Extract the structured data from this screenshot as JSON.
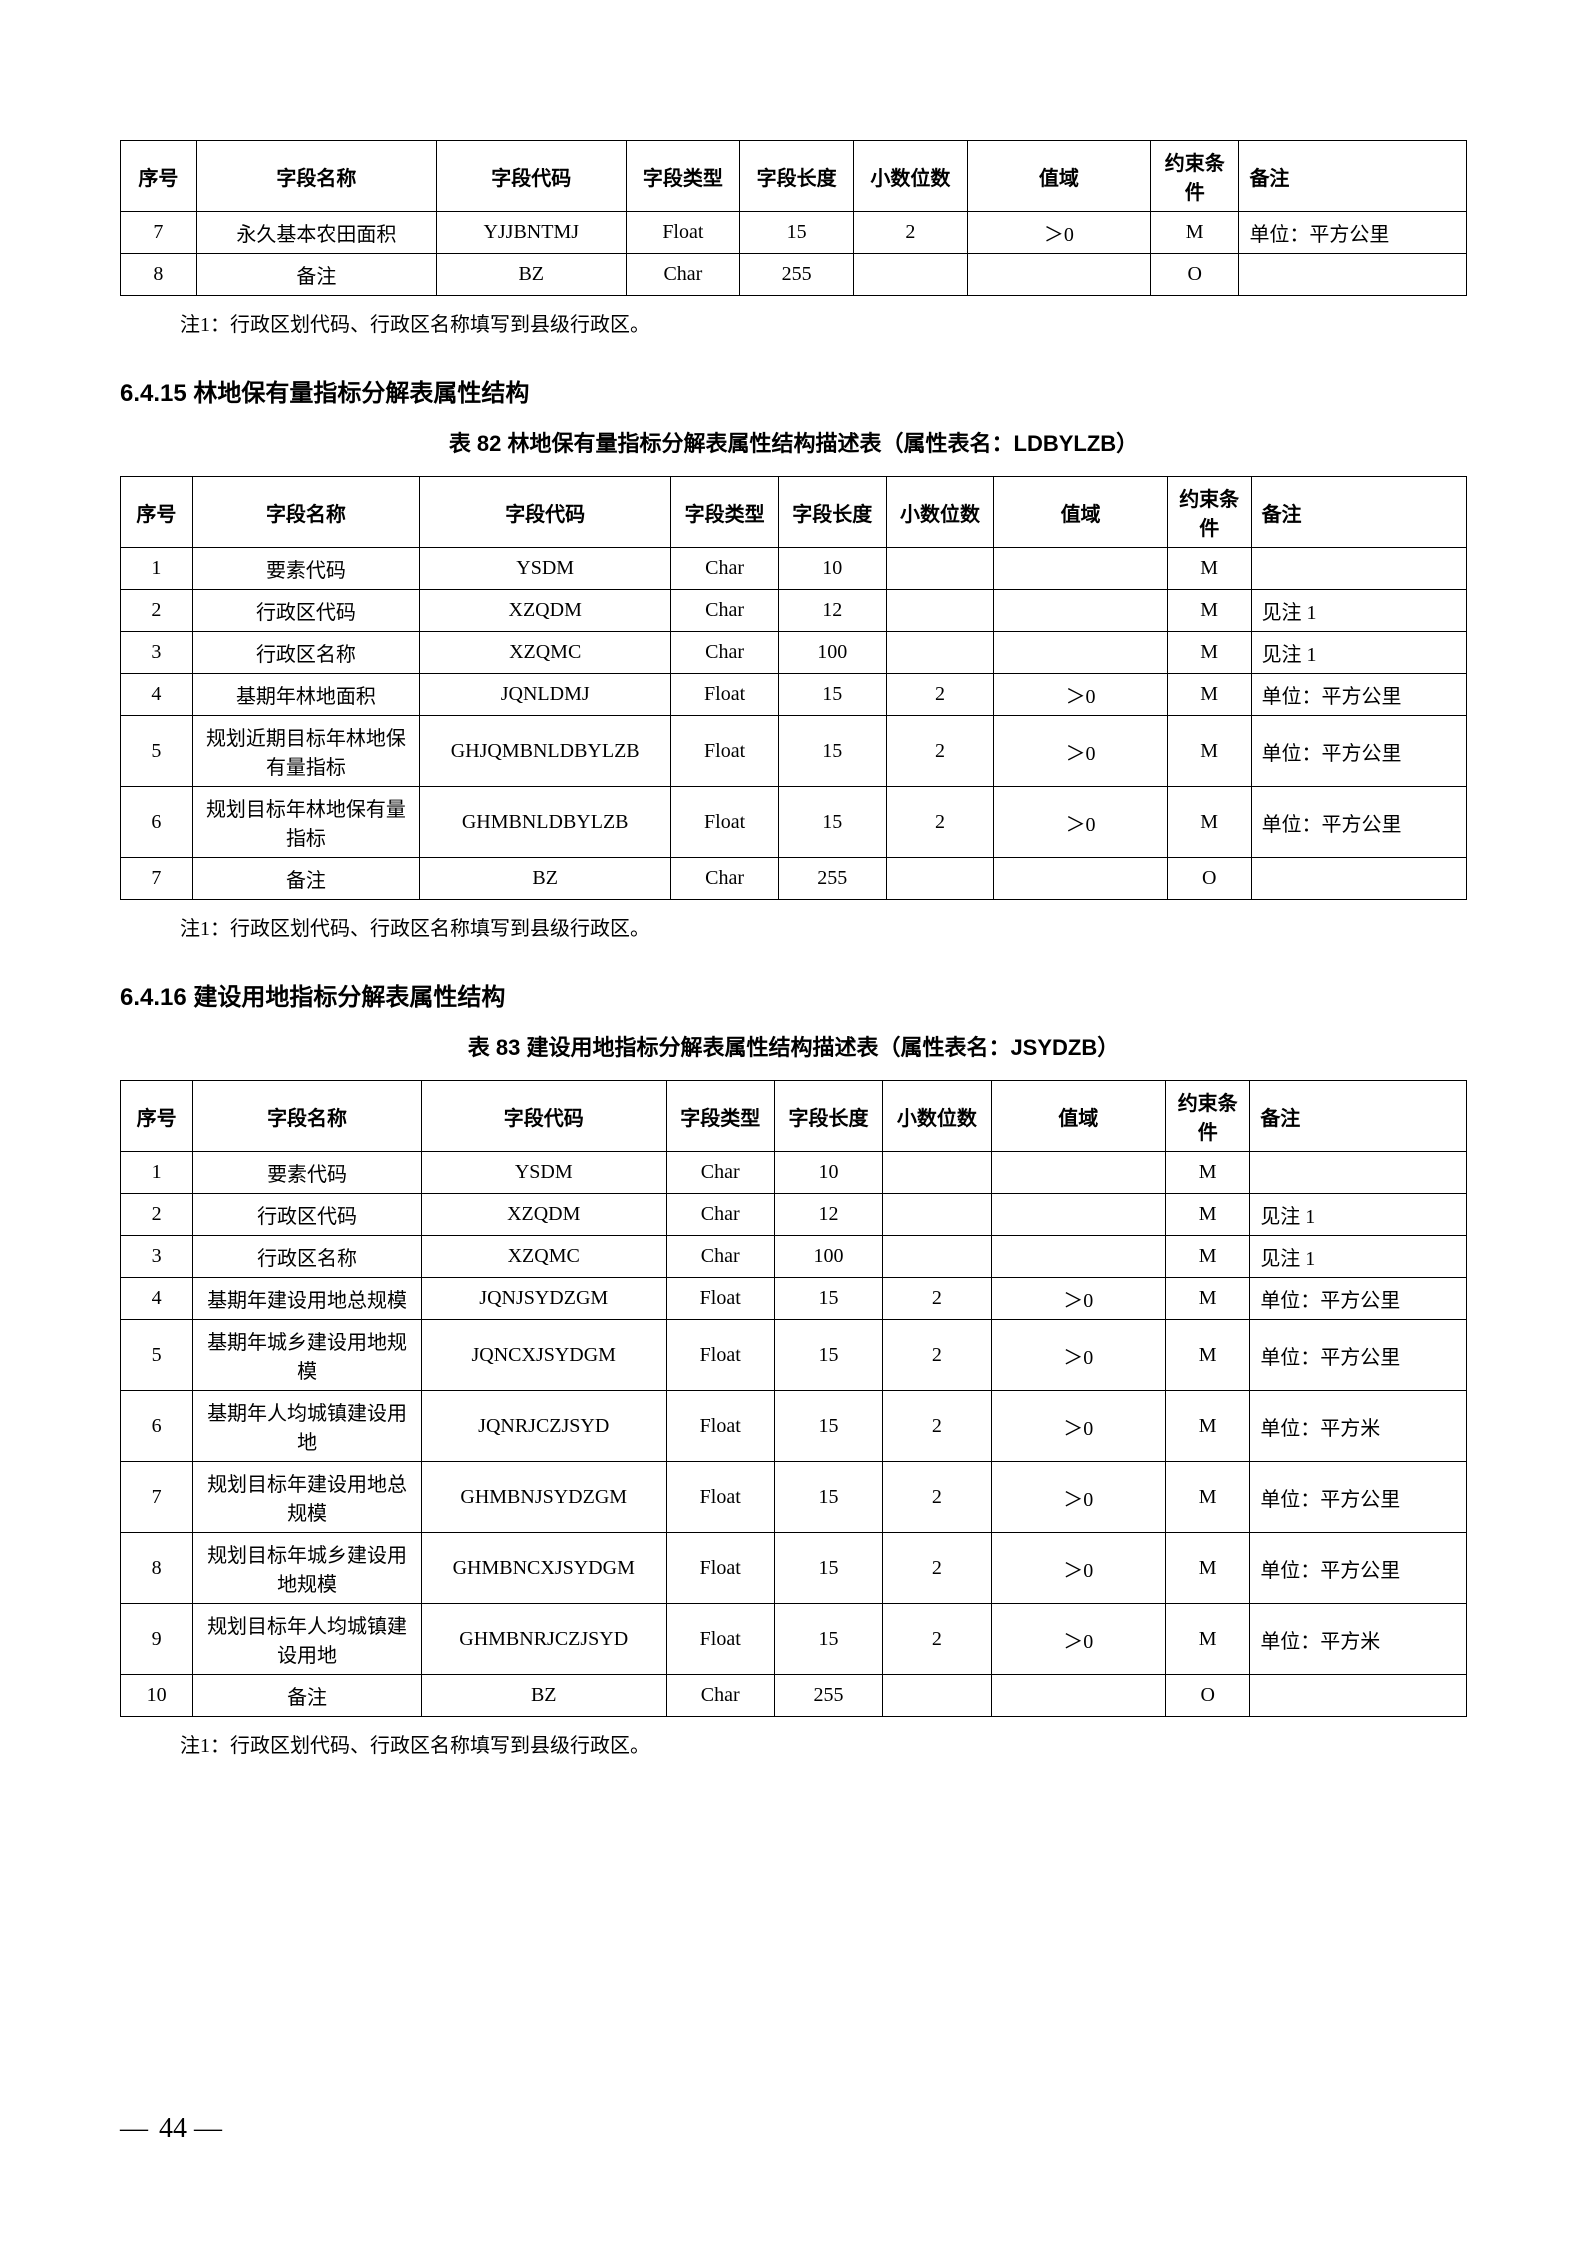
{
  "table1": {
    "headers": [
      "序号",
      "字段名称",
      "字段代码",
      "字段类型",
      "字段长度",
      "小数位数",
      "值域",
      "约束条件",
      "备注"
    ],
    "rows": [
      [
        "7",
        "永久基本农田面积",
        "YJJBNTMJ",
        "Float",
        "15",
        "2",
        "＞0",
        "M",
        "单位：平方公里"
      ],
      [
        "8",
        "备注",
        "BZ",
        "Char",
        "255",
        "",
        "",
        "O",
        ""
      ]
    ],
    "note": "注1：行政区划代码、行政区名称填写到县级行政区。"
  },
  "section2": {
    "heading": "6.4.15  林地保有量指标分解表属性结构",
    "caption": "表 82  林地保有量指标分解表属性结构描述表（属性表名：LDBYLZB）",
    "headers": [
      "序号",
      "字段名称",
      "字段代码",
      "字段类型",
      "字段长度",
      "小数位数",
      "值域",
      "约束条件",
      "备注"
    ],
    "rows": [
      [
        "1",
        "要素代码",
        "YSDM",
        "Char",
        "10",
        "",
        "",
        "M",
        ""
      ],
      [
        "2",
        "行政区代码",
        "XZQDM",
        "Char",
        "12",
        "",
        "",
        "M",
        "见注 1"
      ],
      [
        "3",
        "行政区名称",
        "XZQMC",
        "Char",
        "100",
        "",
        "",
        "M",
        "见注 1"
      ],
      [
        "4",
        "基期年林地面积",
        "JQNLDMJ",
        "Float",
        "15",
        "2",
        "＞0",
        "M",
        "单位：平方公里"
      ],
      [
        "5",
        "规划近期目标年林地保有量指标",
        "GHJQMBNLDBYLZB",
        "Float",
        "15",
        "2",
        "＞0",
        "M",
        "单位：平方公里"
      ],
      [
        "6",
        "规划目标年林地保有量指标",
        "GHMBNLDBYLZB",
        "Float",
        "15",
        "2",
        "＞0",
        "M",
        "单位：平方公里"
      ],
      [
        "7",
        "备注",
        "BZ",
        "Char",
        "255",
        "",
        "",
        "O",
        ""
      ]
    ],
    "note": "注1：行政区划代码、行政区名称填写到县级行政区。"
  },
  "section3": {
    "heading": "6.4.16  建设用地指标分解表属性结构",
    "caption": "表 83  建设用地指标分解表属性结构描述表（属性表名：JSYDZB）",
    "headers": [
      "序号",
      "字段名称",
      "字段代码",
      "字段类型",
      "字段长度",
      "小数位数",
      "值域",
      "约束条件",
      "备注"
    ],
    "rows": [
      [
        "1",
        "要素代码",
        "YSDM",
        "Char",
        "10",
        "",
        "",
        "M",
        ""
      ],
      [
        "2",
        "行政区代码",
        "XZQDM",
        "Char",
        "12",
        "",
        "",
        "M",
        "见注 1"
      ],
      [
        "3",
        "行政区名称",
        "XZQMC",
        "Char",
        "100",
        "",
        "",
        "M",
        "见注 1"
      ],
      [
        "4",
        "基期年建设用地总规模",
        "JQNJSYDZGM",
        "Float",
        "15",
        "2",
        "＞0",
        "M",
        "单位：平方公里"
      ],
      [
        "5",
        "基期年城乡建设用地规模",
        "JQNCXJSYDGM",
        "Float",
        "15",
        "2",
        "＞0",
        "M",
        "单位：平方公里"
      ],
      [
        "6",
        "基期年人均城镇建设用地",
        "JQNRJCZJSYD",
        "Float",
        "15",
        "2",
        "＞0",
        "M",
        "单位：平方米"
      ],
      [
        "7",
        "规划目标年建设用地总规模",
        "GHMBNJSYDZGM",
        "Float",
        "15",
        "2",
        "＞0",
        "M",
        "单位：平方公里"
      ],
      [
        "8",
        "规划目标年城乡建设用地规模",
        "GHMBNCXJSYDGM",
        "Float",
        "15",
        "2",
        "＞0",
        "M",
        "单位：平方公里"
      ],
      [
        "9",
        "规划目标年人均城镇建设用地",
        "GHMBNRJCZJSYD",
        "Float",
        "15",
        "2",
        "＞0",
        "M",
        "单位：平方米"
      ],
      [
        "10",
        "备注",
        "BZ",
        "Char",
        "255",
        "",
        "",
        "O",
        ""
      ]
    ],
    "note": "注1：行政区划代码、行政区名称填写到县级行政区。"
  },
  "pageNumber": "44"
}
